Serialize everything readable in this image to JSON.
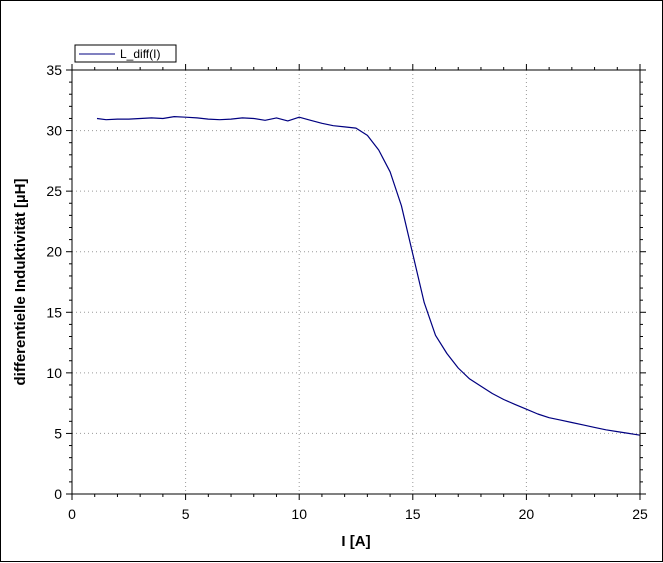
{
  "chart_data": {
    "type": "line",
    "title": "",
    "xlabel": "I [A]",
    "ylabel": "differentielle Induktivität [µH]",
    "xlim": [
      0,
      25
    ],
    "ylim": [
      0,
      35
    ],
    "xticks": [
      0,
      5,
      10,
      15,
      20,
      25
    ],
    "yticks": [
      0,
      5,
      10,
      15,
      20,
      25,
      30,
      35
    ],
    "grid": true,
    "legend_position": "top-left",
    "series": [
      {
        "name": "L_diff(I)",
        "color": "#000080",
        "x": [
          1.1,
          1.5,
          2,
          2.5,
          3,
          3.5,
          4,
          4.5,
          5,
          5.5,
          6,
          6.5,
          7,
          7.5,
          8,
          8.5,
          9,
          9.5,
          10,
          10.5,
          11,
          11.5,
          12,
          12.5,
          13,
          13.5,
          14,
          14.5,
          15,
          15.5,
          16,
          16.5,
          17,
          17.5,
          18,
          18.5,
          19,
          19.5,
          20,
          20.5,
          21,
          21.5,
          22,
          22.5,
          23,
          23.5,
          24,
          24.5,
          25
        ],
        "y": [
          31.0,
          30.9,
          30.95,
          30.95,
          31.0,
          31.05,
          31.0,
          31.15,
          31.1,
          31.05,
          30.95,
          30.9,
          30.95,
          31.05,
          31.0,
          30.85,
          31.05,
          30.8,
          31.1,
          30.85,
          30.6,
          30.4,
          30.3,
          30.2,
          29.6,
          28.4,
          26.6,
          23.8,
          19.8,
          15.8,
          13.1,
          11.6,
          10.4,
          9.5,
          8.9,
          8.3,
          7.8,
          7.4,
          7.0,
          6.6,
          6.3,
          6.1,
          5.9,
          5.7,
          5.5,
          5.3,
          5.15,
          5.0,
          4.85
        ]
      }
    ]
  }
}
